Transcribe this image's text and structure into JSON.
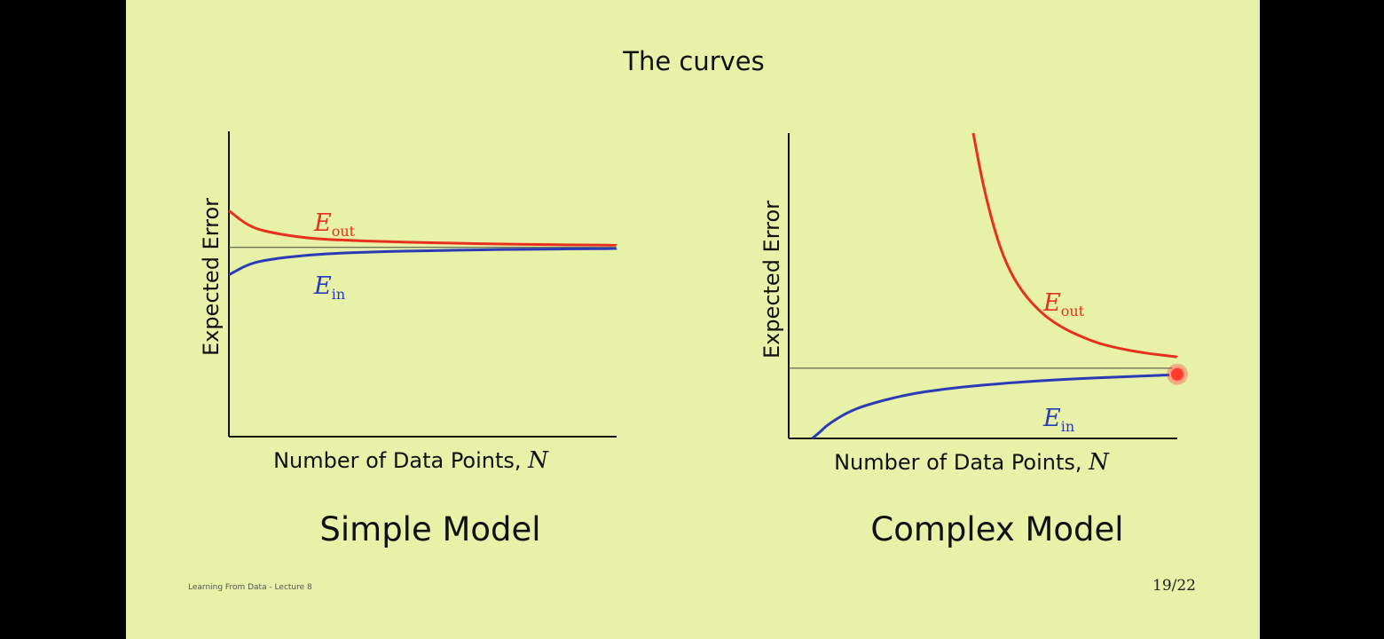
{
  "slide": {
    "title": "The curves",
    "footer_left": "Learning From Data - Lecture 8",
    "page_number": "19/22",
    "background_color": "#e7f1a8",
    "frame_color": "#000000"
  },
  "chart_data": [
    {
      "type": "line",
      "caption": "Simple Model",
      "xlabel": "Number of Data Points, ",
      "xlabel_var": "N",
      "ylabel": "Expected Error",
      "xlim": [
        0,
        100
      ],
      "ylim": [
        0,
        100
      ],
      "reference_line": {
        "y": 62
      },
      "series": [
        {
          "name": "E",
          "subscript": "out",
          "color": "#e8301c",
          "x": [
            0,
            5,
            10,
            20,
            30,
            40,
            50,
            60,
            70,
            80,
            90,
            100
          ],
          "y": [
            74,
            69,
            67,
            65,
            64.3,
            63.9,
            63.6,
            63.3,
            63.1,
            62.9,
            62.8,
            62.7
          ]
        },
        {
          "name": "E",
          "subscript": "in",
          "color": "#2a3bb5",
          "x": [
            0,
            5,
            10,
            20,
            30,
            40,
            50,
            60,
            70,
            80,
            90,
            100
          ],
          "y": [
            53,
            56.5,
            58,
            59.5,
            60.2,
            60.6,
            60.9,
            61.1,
            61.3,
            61.4,
            61.5,
            61.6
          ]
        }
      ]
    },
    {
      "type": "line",
      "caption": "Complex Model",
      "xlabel": "Number of Data Points, ",
      "xlabel_var": "N",
      "ylabel": "Expected Error",
      "xlim": [
        0,
        100
      ],
      "ylim": [
        0,
        100
      ],
      "reference_line": {
        "y": 23
      },
      "highlight_point": {
        "x": 100,
        "y": 21,
        "color": "#ff3b2a"
      },
      "series": [
        {
          "name": "E",
          "subscript": "out",
          "color": "#e8301c",
          "x": [
            47.5,
            50,
            53,
            56,
            60,
            65,
            70,
            75,
            80,
            85,
            90,
            95,
            100
          ],
          "y": [
            100,
            83,
            68,
            57,
            48,
            41,
            36.5,
            33.5,
            31,
            29.5,
            28.3,
            27.4,
            26.7
          ]
        },
        {
          "name": "E",
          "subscript": "in",
          "color": "#2a3bb5",
          "x": [
            6,
            8,
            10,
            15,
            20,
            30,
            40,
            50,
            60,
            70,
            80,
            90,
            100
          ],
          "y": [
            -1,
            2,
            4.5,
            8.5,
            11,
            14.3,
            16.2,
            17.5,
            18.5,
            19.3,
            19.9,
            20.4,
            20.9
          ]
        }
      ]
    }
  ]
}
